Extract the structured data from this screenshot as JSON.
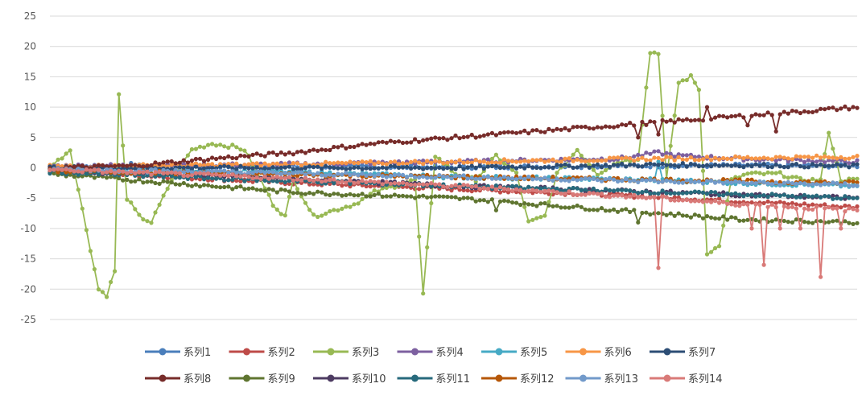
{
  "chart_data": {
    "type": "line",
    "title": "",
    "xlabel": "",
    "ylabel": "",
    "ylim": [
      -25,
      25
    ],
    "yticks": [
      25,
      20,
      15,
      10,
      5,
      0,
      -5,
      -10,
      -15,
      -20,
      -25
    ],
    "x_points": 200,
    "grid": "horizontal",
    "legend_position": "bottom",
    "series": [
      {
        "name": "系列1",
        "color": "#4a7ebb",
        "anchors": [
          [
            0,
            0.3
          ],
          [
            30,
            0.3
          ],
          [
            60,
            0.2
          ],
          [
            100,
            0.1
          ],
          [
            140,
            0.3
          ],
          [
            170,
            0.4
          ],
          [
            199,
            0.3
          ]
        ],
        "spikes": [
          [
            20,
            0.8
          ],
          [
            90,
            0.7
          ]
        ]
      },
      {
        "name": "系列2",
        "color": "#be4b48",
        "anchors": [
          [
            0,
            -0.5
          ],
          [
            30,
            -1.5
          ],
          [
            60,
            -2.5
          ],
          [
            100,
            -3.5
          ],
          [
            140,
            -4.5
          ],
          [
            170,
            -5.5
          ],
          [
            199,
            -6.5
          ]
        ],
        "spikes": []
      },
      {
        "name": "系列3",
        "color": "#98b954",
        "anchors": [
          [
            0,
            0
          ],
          [
            5,
            3
          ],
          [
            12,
            -20
          ],
          [
            14,
            -21
          ],
          [
            16,
            -17
          ],
          [
            17,
            12
          ],
          [
            19,
            -5
          ],
          [
            22,
            -8
          ],
          [
            25,
            -9
          ],
          [
            30,
            -2
          ],
          [
            35,
            3
          ],
          [
            40,
            4
          ],
          [
            45,
            3.5
          ],
          [
            48,
            3
          ],
          [
            52,
            -2
          ],
          [
            55,
            -6
          ],
          [
            58,
            -8
          ],
          [
            60,
            -2
          ],
          [
            65,
            -8
          ],
          [
            70,
            -7
          ],
          [
            75,
            -6
          ],
          [
            80,
            -4
          ],
          [
            85,
            -3
          ],
          [
            90,
            -2
          ],
          [
            92,
            -21
          ],
          [
            95,
            2
          ],
          [
            100,
            -1
          ],
          [
            105,
            -2
          ],
          [
            110,
            2
          ],
          [
            115,
            -1
          ],
          [
            118,
            -9
          ],
          [
            122,
            -8
          ],
          [
            125,
            -1
          ],
          [
            130,
            3
          ],
          [
            135,
            -1
          ],
          [
            140,
            1
          ],
          [
            145,
            1.5
          ],
          [
            148,
            19
          ],
          [
            150,
            19
          ],
          [
            152,
            -2
          ],
          [
            155,
            14
          ],
          [
            158,
            15
          ],
          [
            160,
            13
          ],
          [
            162,
            -14
          ],
          [
            165,
            -13
          ],
          [
            168,
            -2
          ],
          [
            172,
            -1
          ],
          [
            180,
            -1
          ],
          [
            185,
            -2
          ],
          [
            190,
            -2
          ],
          [
            192,
            6
          ],
          [
            195,
            -2
          ],
          [
            199,
            -2
          ]
        ],
        "spikes": []
      },
      {
        "name": "系列4",
        "color": "#7d60a0",
        "anchors": [
          [
            0,
            0.3
          ],
          [
            50,
            0.5
          ],
          [
            100,
            1
          ],
          [
            140,
            1.5
          ],
          [
            150,
            2.5
          ],
          [
            155,
            2
          ],
          [
            170,
            1.5
          ],
          [
            199,
            1
          ]
        ],
        "spikes": []
      },
      {
        "name": "系列5",
        "color": "#46aac5",
        "anchors": [
          [
            0,
            -0.3
          ],
          [
            50,
            -0.5
          ],
          [
            100,
            -1.5
          ],
          [
            150,
            -2
          ],
          [
            170,
            -2.5
          ],
          [
            199,
            -3
          ]
        ],
        "spikes": [
          [
            150,
            1
          ]
        ]
      },
      {
        "name": "系列6",
        "color": "#f79646",
        "anchors": [
          [
            0,
            0.2
          ],
          [
            50,
            0.5
          ],
          [
            100,
            1
          ],
          [
            150,
            1.5
          ],
          [
            199,
            1.8
          ]
        ],
        "spikes": []
      },
      {
        "name": "系列7",
        "color": "#2c4d75",
        "anchors": [
          [
            0,
            0
          ],
          [
            50,
            0
          ],
          [
            100,
            0
          ],
          [
            150,
            0.5
          ],
          [
            199,
            0.3
          ]
        ],
        "spikes": []
      },
      {
        "name": "系列8",
        "color": "#772c2a",
        "anchors": [
          [
            0,
            0
          ],
          [
            20,
            0.3
          ],
          [
            40,
            1.5
          ],
          [
            60,
            2.5
          ],
          [
            80,
            4
          ],
          [
            100,
            5
          ],
          [
            120,
            6
          ],
          [
            140,
            7
          ],
          [
            160,
            8
          ],
          [
            180,
            9
          ],
          [
            199,
            10
          ]
        ],
        "spikes": [
          [
            145,
            5
          ],
          [
            150,
            5.5
          ],
          [
            162,
            10
          ],
          [
            172,
            7
          ],
          [
            179,
            6
          ]
        ]
      },
      {
        "name": "系列9",
        "color": "#5f7530",
        "anchors": [
          [
            0,
            -1
          ],
          [
            30,
            -2.5
          ],
          [
            60,
            -4
          ],
          [
            100,
            -5
          ],
          [
            140,
            -7
          ],
          [
            170,
            -8.5
          ],
          [
            199,
            -9
          ]
        ],
        "spikes": [
          [
            110,
            -7
          ],
          [
            145,
            -9
          ]
        ]
      },
      {
        "name": "系列10",
        "color": "#4d3b62",
        "anchors": [
          [
            0,
            -0.5
          ],
          [
            50,
            -1.5
          ],
          [
            100,
            -3
          ],
          [
            150,
            -4
          ],
          [
            199,
            -5
          ]
        ],
        "spikes": []
      },
      {
        "name": "系列11",
        "color": "#276a7c",
        "anchors": [
          [
            0,
            -0.7
          ],
          [
            50,
            -2
          ],
          [
            100,
            -3
          ],
          [
            150,
            -4
          ],
          [
            199,
            -5
          ]
        ],
        "spikes": []
      },
      {
        "name": "系列12",
        "color": "#b65708",
        "anchors": [
          [
            0,
            -0.5
          ],
          [
            50,
            -1
          ],
          [
            100,
            -1.5
          ],
          [
            150,
            -2
          ],
          [
            199,
            -2.5
          ]
        ],
        "spikes": []
      },
      {
        "name": "系列13",
        "color": "#729aca",
        "anchors": [
          [
            0,
            -0.2
          ],
          [
            50,
            -0.8
          ],
          [
            100,
            -1.5
          ],
          [
            150,
            -2.2
          ],
          [
            199,
            -2.8
          ]
        ],
        "spikes": []
      },
      {
        "name": "系列14",
        "color": "#d97a78",
        "anchors": [
          [
            0,
            -0.3
          ],
          [
            50,
            -1.5
          ],
          [
            100,
            -3
          ],
          [
            150,
            -5
          ],
          [
            170,
            -6
          ],
          [
            199,
            -7
          ]
        ],
        "spikes": [
          [
            150,
            -16.5
          ],
          [
            173,
            -10
          ],
          [
            176,
            -16
          ],
          [
            180,
            -10
          ],
          [
            185,
            -10
          ],
          [
            190,
            -18
          ],
          [
            195,
            -10
          ]
        ]
      }
    ]
  }
}
